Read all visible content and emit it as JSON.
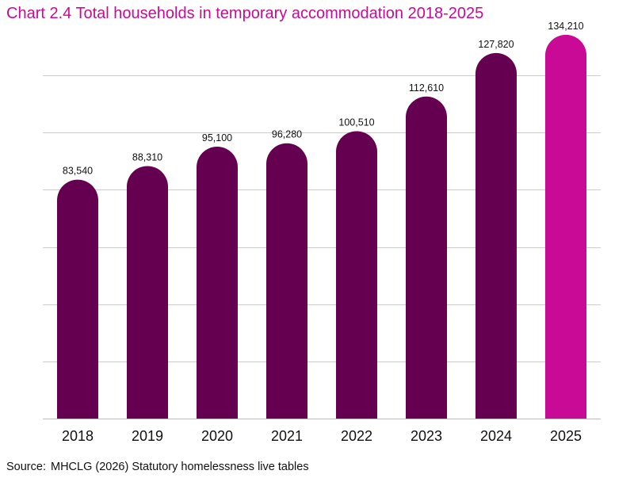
{
  "title": "Chart 2.4 Total households in temporary accommodation 2018-2025",
  "source": {
    "label": "Source:",
    "text": "MHCLG (2026) Statutory homelessness live tables"
  },
  "colors": {
    "bar": "#650050",
    "highlight": "#c80a96",
    "grid": "#cccccc",
    "title": "#c80a96"
  },
  "chart_data": {
    "type": "bar",
    "categories": [
      "2018",
      "2019",
      "2020",
      "2021",
      "2022",
      "2023",
      "2024",
      "2025"
    ],
    "values": [
      83540,
      88310,
      95100,
      96280,
      100510,
      112610,
      127820,
      134210
    ],
    "data_labels": [
      "83,540",
      "88,310",
      "95,100",
      "96,280",
      "100,510",
      "112,610",
      "127,820",
      "134,210"
    ],
    "highlight_index": 7,
    "title": "Chart 2.4 Total households in temporary accommodation 2018-2025",
    "xlabel": "",
    "ylabel": "",
    "ylim": [
      0,
      140000
    ],
    "grid_step": 20000,
    "grid": true,
    "y_tick_labels_shown": false,
    "legend": "none"
  }
}
